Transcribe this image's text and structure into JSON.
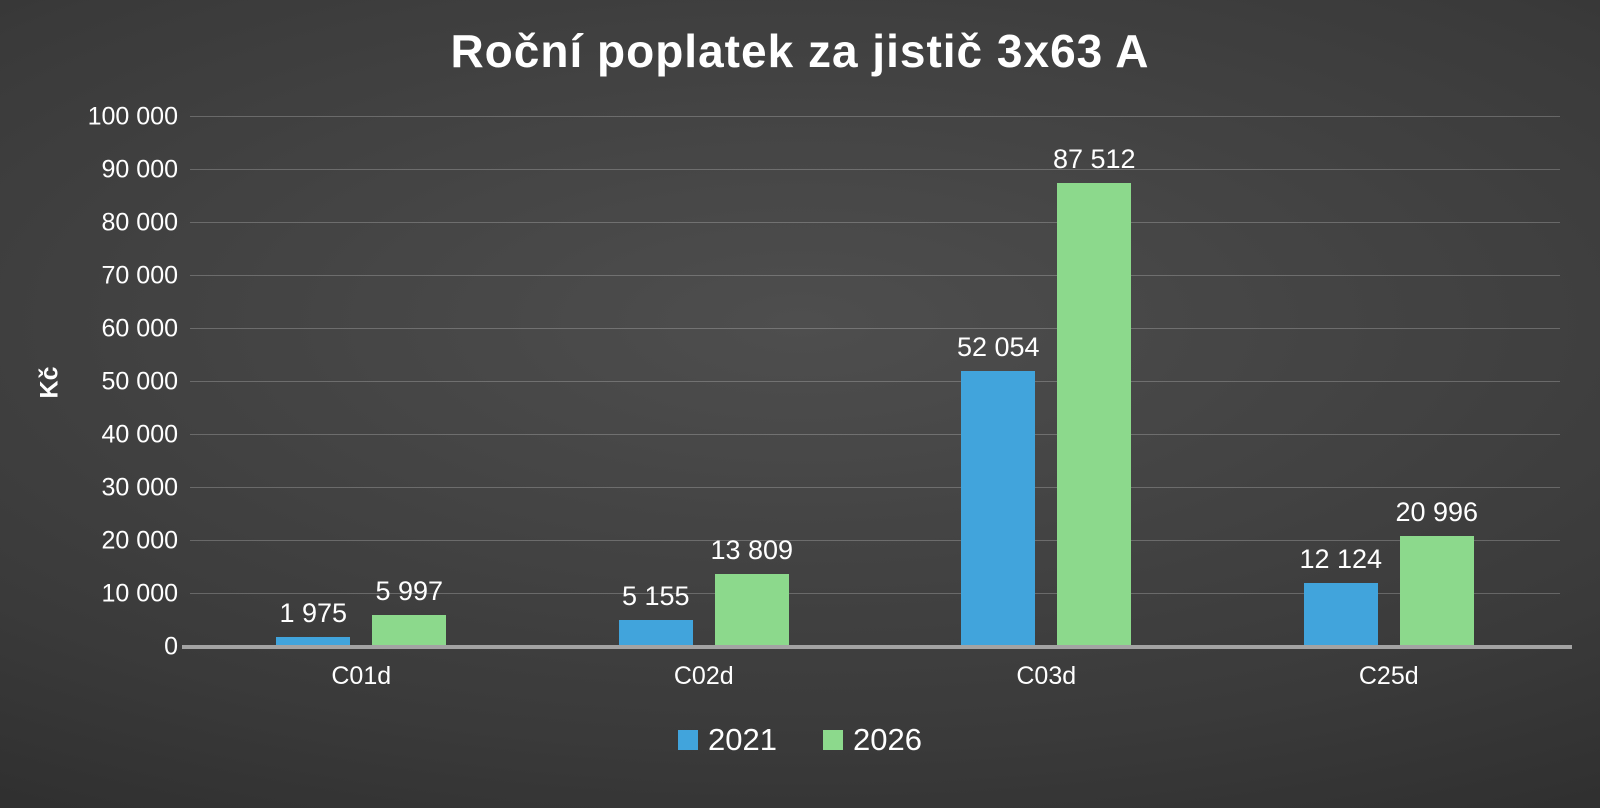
{
  "chart_data": {
    "type": "bar",
    "title": "Roční poplatek za jistič 3x63 A",
    "ylabel": "Kč",
    "categories": [
      "C01d",
      "C02d",
      "C03d",
      "C25d"
    ],
    "series": [
      {
        "name": "2021",
        "color": "#41A4DC",
        "values": [
          1975,
          5155,
          52054,
          12124
        ],
        "labels": [
          "1 975",
          "5 155",
          "52 054",
          "12 124"
        ]
      },
      {
        "name": "2026",
        "color": "#8CD98C",
        "values": [
          5997,
          13809,
          87512,
          20996
        ],
        "labels": [
          "5 997",
          "13 809",
          "87 512",
          "20 996"
        ]
      }
    ],
    "ylim": [
      0,
      100000
    ],
    "yticks": [
      0,
      10000,
      20000,
      30000,
      40000,
      50000,
      60000,
      70000,
      80000,
      90000,
      100000
    ],
    "ytick_labels": [
      "0",
      "10 000",
      "20 000",
      "30 000",
      "40 000",
      "50 000",
      "60 000",
      "70 000",
      "80 000",
      "90 000",
      "100 000"
    ],
    "grid": true,
    "legend_position": "bottom"
  }
}
